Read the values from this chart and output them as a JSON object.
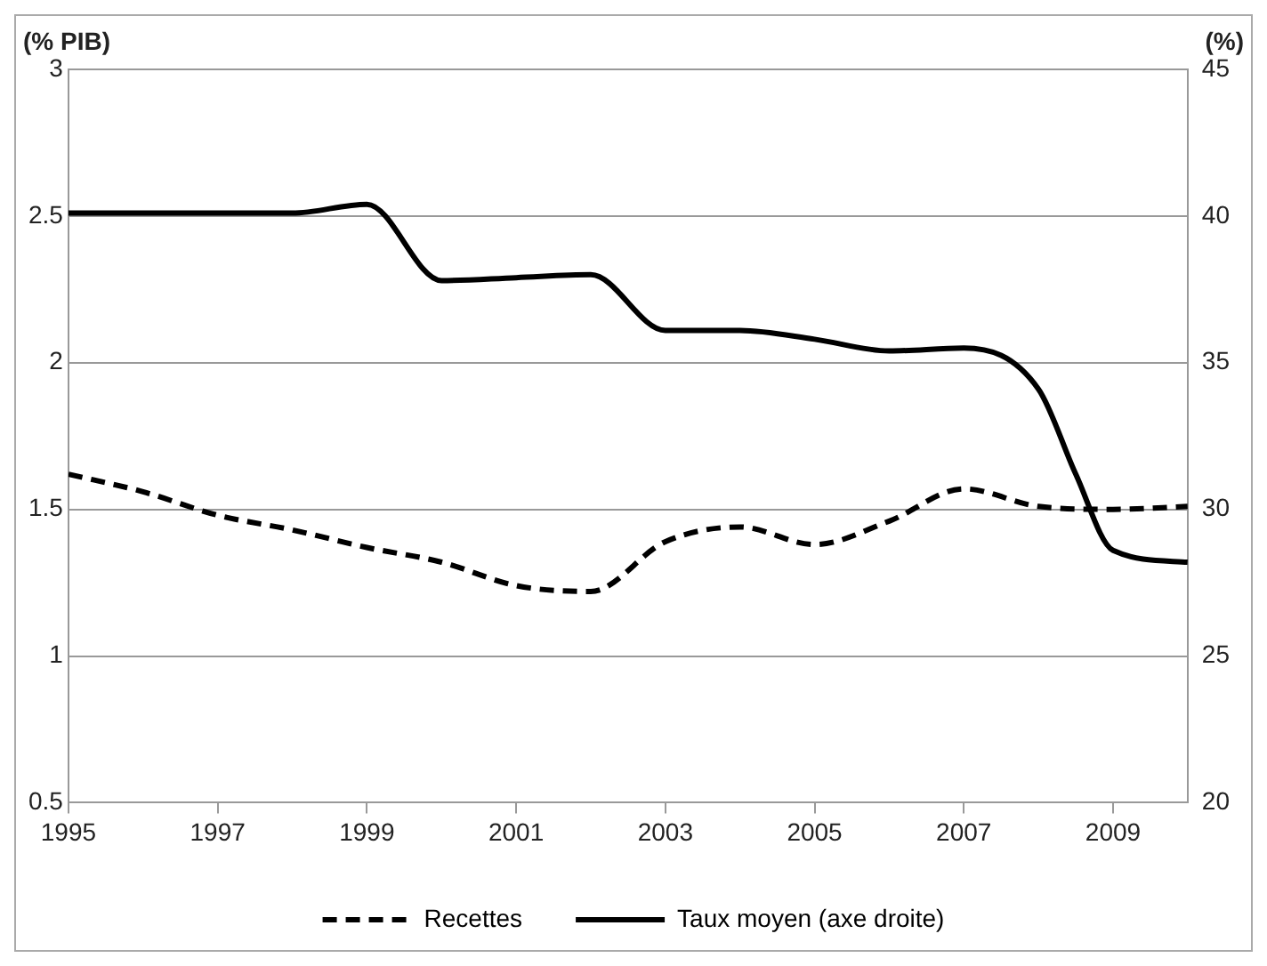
{
  "chart_data": {
    "type": "line",
    "ylabel": "(% PIB)",
    "y2label": "(%)",
    "xlim": [
      1995,
      2010
    ],
    "xticks": [
      1995,
      1997,
      1999,
      2001,
      2003,
      2005,
      2007,
      2009
    ],
    "ylim": [
      0.5,
      3
    ],
    "yticks": [
      0.5,
      1,
      1.5,
      2,
      2.5,
      3
    ],
    "y2lim": [
      20,
      45
    ],
    "y2ticks": [
      20,
      25,
      30,
      35,
      40,
      45
    ],
    "grid": "y",
    "legend": "bottom",
    "marker": "none",
    "series": [
      {
        "name": "Recettes",
        "color": "#000000",
        "line_style": "dashed",
        "x": [
          1995,
          1996,
          1997,
          1998,
          1999,
          2000,
          2001,
          2002,
          2003,
          2004,
          2005,
          2006,
          2007,
          2008,
          2009,
          2010
        ],
        "values": [
          1.62,
          1.56,
          1.48,
          1.43,
          1.37,
          1.32,
          1.24,
          1.22,
          1.39,
          1.44,
          1.38,
          1.46,
          1.57,
          1.51,
          1.5,
          1.51
        ]
      },
      {
        "name": "Taux moyen (axe droite)",
        "color": "#000000",
        "line_style": "solid",
        "axis": "y2",
        "x": [
          1995,
          1996,
          1997,
          1998,
          1999,
          2000,
          2001,
          2002,
          2003,
          2004,
          2005,
          2006,
          2007,
          2008,
          2008.5,
          2009,
          2010
        ],
        "values": [
          40.1,
          40.1,
          40.1,
          40.1,
          40.4,
          37.8,
          37.9,
          38.0,
          36.1,
          36.1,
          35.8,
          35.4,
          35.5,
          34.1,
          31.2,
          28.6,
          28.2
        ]
      }
    ]
  }
}
